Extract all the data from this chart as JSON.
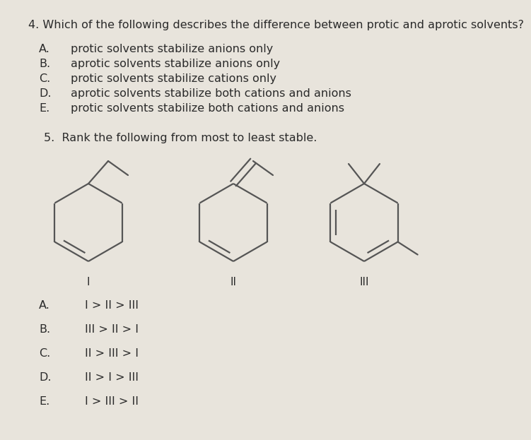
{
  "bg_color": "#e8e4dc",
  "text_color": "#2a2a2a",
  "q4_title": "4. Which of the following describes the difference between protic and aprotic solvents?",
  "q4_options_letters": [
    "A.",
    "B.",
    "C.",
    "D.",
    "E."
  ],
  "q4_options_text": [
    "protic solvents stabilize anions only",
    "aprotic solvents stabilize anions only",
    "protic solvents stabilize cations only",
    "aprotic solvents stabilize both cations and anions",
    "protic solvents stabilize both cations and anions"
  ],
  "q5_title": "5.  Rank the following from most to least stable.",
  "q5_options_letters": [
    "A.",
    "B.",
    "C.",
    "D.",
    "E."
  ],
  "q5_options_text": [
    "I > II > III",
    "III > II > I",
    "II > III > I",
    "II > I > III",
    "I > III > II"
  ],
  "label_I": "I",
  "label_II": "II",
  "label_III": "III",
  "font_size_title": 11.5,
  "font_size_options": 11.5,
  "font_size_labels": 11.0,
  "struct_color": "#555555",
  "struct_lw": 1.6
}
